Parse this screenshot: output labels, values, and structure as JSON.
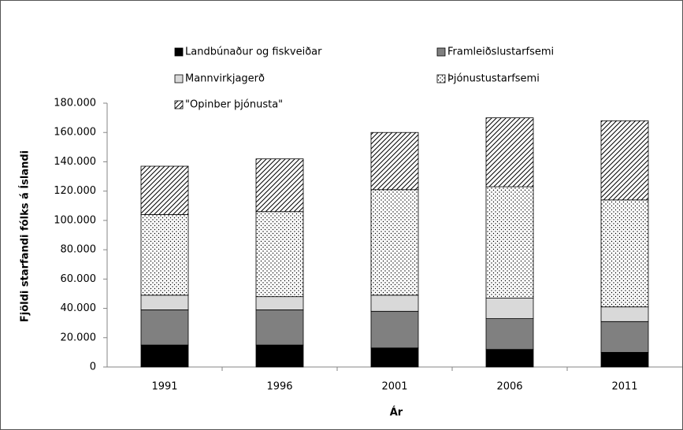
{
  "chart_data": {
    "type": "stacked_bar",
    "x_label": "Ár",
    "y_label": "Fjöldi starfandi fólks á Íslandi",
    "categories": [
      "1991",
      "1996",
      "2001",
      "2006",
      "2011"
    ],
    "series": [
      {
        "name": "Landbúnaður og fiskveiðar",
        "color": "#000000",
        "pattern": "solid",
        "values": [
          15000,
          15000,
          13000,
          12000,
          10000
        ]
      },
      {
        "name": "Framleiðslustarfsemi",
        "color": "#808080",
        "pattern": "solid",
        "values": [
          24000,
          24000,
          25000,
          21000,
          21000
        ]
      },
      {
        "name": "Mannvirkjagerð",
        "color": "#d9d9d9",
        "pattern": "solid",
        "values": [
          10000,
          9000,
          11000,
          14000,
          10000
        ]
      },
      {
        "name": "Þjónustustarfsemi",
        "color": "#ffffff",
        "pattern": "dots",
        "values": [
          55000,
          58000,
          72000,
          76000,
          73000
        ]
      },
      {
        "name": "\"Opinber þjónusta\"",
        "color": "#ffffff",
        "pattern": "hatch",
        "values": [
          33000,
          36000,
          39000,
          47000,
          54000
        ]
      }
    ],
    "ylim": [
      0,
      180000
    ],
    "yticks": [
      0,
      {
        "value": 20000,
        "label": "20.000"
      },
      {
        "value": 40000,
        "label": "40.000"
      },
      {
        "value": 60000,
        "label": "60.000"
      },
      {
        "value": 80000,
        "label": "80.000"
      },
      {
        "value": 100000,
        "label": "100.000"
      },
      {
        "value": 120000,
        "label": "120.000"
      },
      {
        "value": 140000,
        "label": "140.000"
      },
      {
        "value": 160000,
        "label": "160.000"
      },
      {
        "value": 180000,
        "label": "180.000"
      }
    ],
    "grid": false
  }
}
